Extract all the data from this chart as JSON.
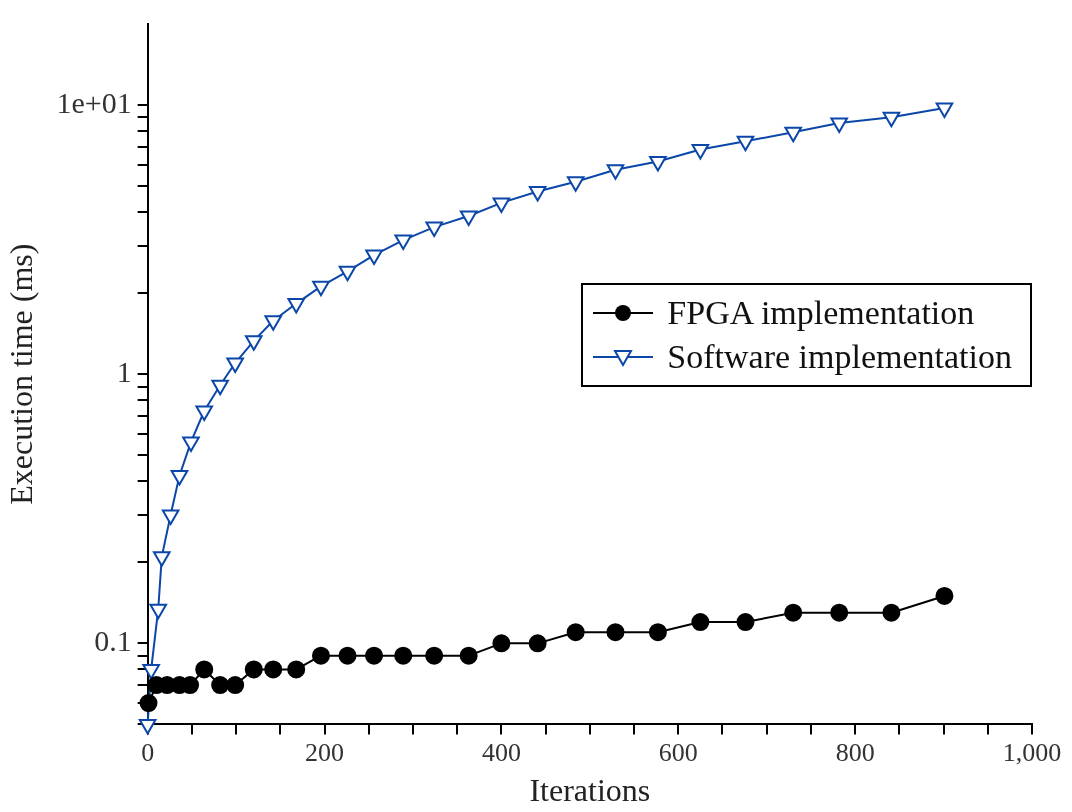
{
  "chart_data": {
    "type": "line",
    "xlabel": "Iterations",
    "ylabel": "Execution time (ms)",
    "log": "y",
    "legend": "right",
    "grid": false,
    "xlim": [
      0,
      1000
    ],
    "xticks": [
      0,
      {
        "value": 50,
        "label": null
      },
      200,
      {
        "value": 100,
        "label": null
      },
      {
        "value": 150,
        "label": null
      },
      {
        "value": 250,
        "label": null
      },
      {
        "value": 300,
        "label": null
      },
      {
        "value": 350,
        "label": null
      },
      400,
      {
        "value": 450,
        "label": null
      },
      {
        "value": 500,
        "label": null
      },
      {
        "value": 550,
        "label": null
      },
      600,
      {
        "value": 650,
        "label": null
      },
      {
        "value": 700,
        "label": null
      },
      {
        "value": 750,
        "label": null
      },
      800,
      {
        "value": 850,
        "label": null
      },
      {
        "value": 900,
        "label": null
      },
      {
        "value": 950,
        "label": null
      },
      {
        "value": 1000,
        "label": "1,000"
      }
    ],
    "ylim": [
      0.05,
      20
    ],
    "yticks": [
      {
        "value": 0.05,
        "label": null
      },
      {
        "value": 0.06,
        "label": null
      },
      {
        "value": 0.07,
        "label": null
      },
      {
        "value": 0.08,
        "label": null
      },
      {
        "value": 0.09,
        "label": null
      },
      0.1,
      {
        "value": 0.2,
        "label": null
      },
      {
        "value": 0.3,
        "label": null
      },
      {
        "value": 0.4,
        "label": null
      },
      {
        "value": 0.5,
        "label": null
      },
      {
        "value": 0.6,
        "label": null
      },
      {
        "value": 0.7,
        "label": null
      },
      {
        "value": 0.8,
        "label": null
      },
      {
        "value": 0.9,
        "label": null
      },
      1,
      {
        "value": 2,
        "label": null
      },
      {
        "value": 3,
        "label": null
      },
      {
        "value": 4,
        "label": null
      },
      {
        "value": 5,
        "label": null
      },
      {
        "value": 6,
        "label": null
      },
      {
        "value": 7,
        "label": null
      },
      {
        "value": 8,
        "label": null
      },
      {
        "value": 9,
        "label": null
      },
      {
        "value": 10,
        "label": "1e+01"
      }
    ],
    "series": [
      {
        "name": "FPGA implementation",
        "color": "#000000",
        "marker": "circle",
        "x": [
          1,
          10,
          22,
          36,
          48,
          64,
          82,
          99,
          120,
          142,
          168,
          196,
          226,
          256,
          289,
          324,
          363,
          400,
          441,
          484,
          529,
          577,
          625,
          676,
          730,
          782,
          841,
          901
        ],
        "values": [
          0.06,
          0.07,
          0.07,
          0.07,
          0.07,
          0.08,
          0.07,
          0.07,
          0.08,
          0.08,
          0.08,
          0.09,
          0.09,
          0.09,
          0.09,
          0.09,
          0.09,
          0.1,
          0.1,
          0.11,
          0.11,
          0.11,
          0.12,
          0.12,
          0.13,
          0.13,
          0.13,
          0.15
        ]
      },
      {
        "name": "Software implementation",
        "color": "#0b47a8",
        "marker": "triangle",
        "x": [
          0,
          4,
          12,
          16,
          26,
          36,
          49,
          64,
          82,
          99,
          120,
          142,
          168,
          196,
          226,
          256,
          289,
          324,
          363,
          400,
          441,
          484,
          529,
          577,
          625,
          676,
          730,
          782,
          841,
          901
        ],
        "values": [
          0.05,
          0.08,
          0.134,
          0.21,
          0.3,
          0.42,
          0.56,
          0.73,
          0.91,
          1.1,
          1.33,
          1.58,
          1.83,
          2.12,
          2.41,
          2.77,
          3.15,
          3.52,
          3.87,
          4.33,
          4.77,
          5.19,
          5.75,
          6.17,
          6.84,
          7.33,
          7.92,
          8.57,
          9.0,
          9.74
        ]
      }
    ]
  }
}
